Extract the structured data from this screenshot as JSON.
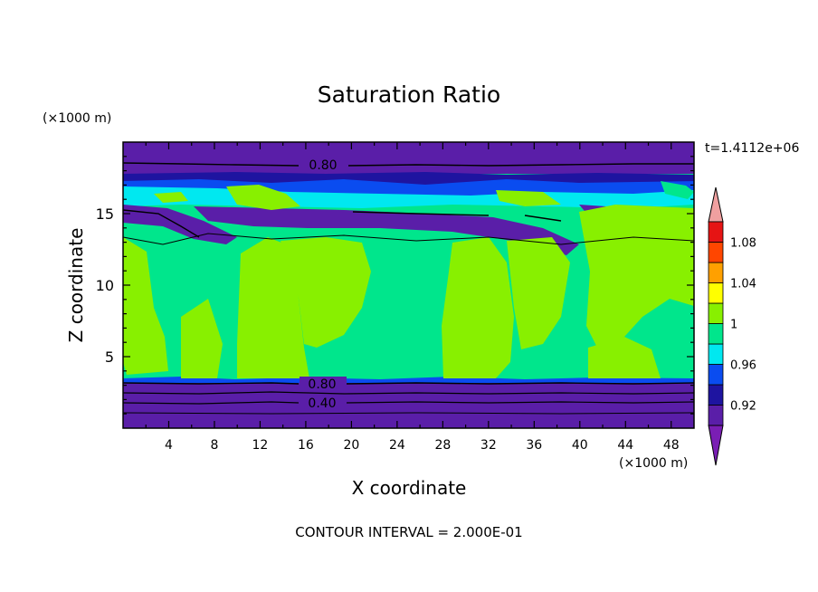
{
  "chart_data": {
    "type": "heatmap",
    "title": "Saturation Ratio",
    "xlabel": "X coordinate",
    "ylabel": "Z coordinate",
    "x_unit": "(×1000 m)",
    "y_unit": "(×1000 m)",
    "time_label": "t=1.4112e+06",
    "footer": "CONTOUR INTERVAL = 2.000E-01",
    "xlim": [
      0,
      50
    ],
    "ylim": [
      0,
      20
    ],
    "x_ticks": [
      4,
      8,
      12,
      16,
      20,
      24,
      28,
      32,
      36,
      40,
      44,
      48
    ],
    "y_ticks": [
      5,
      10,
      15
    ],
    "contour_labels": [
      "0.80",
      "0.80",
      "0.40"
    ],
    "colorbar": {
      "levels": [
        0.9,
        0.92,
        0.94,
        0.96,
        0.98,
        1.0,
        1.02,
        1.04,
        1.06,
        1.08,
        1.1
      ],
      "tick_labels": [
        "0.92",
        "0.96",
        "1",
        "1.04",
        "1.08"
      ],
      "colors": [
        "#5a1ea8",
        "#1e14a0",
        "#0a4cf0",
        "#00e8f0",
        "#00e68c",
        "#88f000",
        "#ffff00",
        "#ffa000",
        "#ff4600",
        "#e61414"
      ],
      "under_color": "#7a1eb4",
      "over_color": "#f0a0a0"
    }
  }
}
